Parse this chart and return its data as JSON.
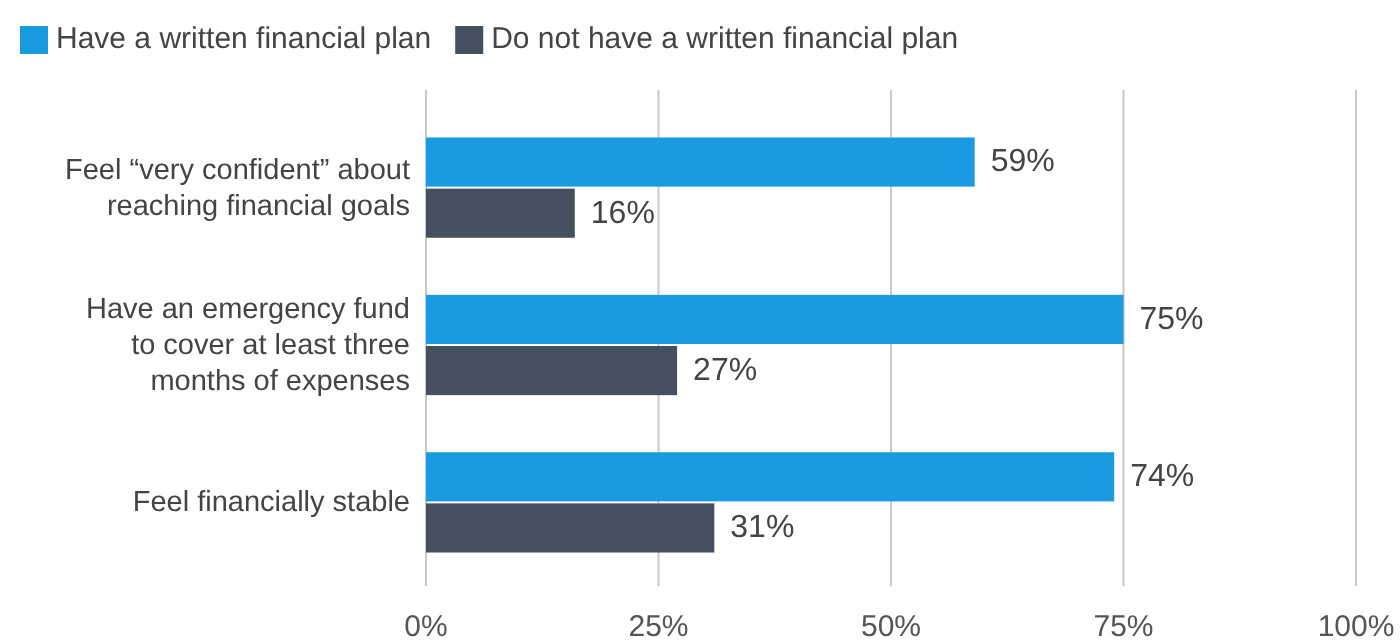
{
  "chart_data": {
    "type": "bar",
    "orientation": "horizontal",
    "categories": [
      "Feel “very confident” about reaching financial goals",
      "Have an emergency fund to cover at least three months of expenses",
      "Feel financially stable"
    ],
    "series": [
      {
        "name": "Have a written financial plan",
        "color": "#1a9ae0",
        "values": [
          59,
          75,
          74
        ],
        "value_labels": [
          "59%",
          "75%",
          "74%"
        ]
      },
      {
        "name": "Do not have a written financial plan",
        "color": "#44505f",
        "values": [
          16,
          27,
          31
        ],
        "value_labels": [
          "16%",
          "27%",
          "31%"
        ]
      }
    ],
    "xlim": [
      0,
      100
    ],
    "xticks": [
      {
        "value": 0,
        "label": "0%"
      },
      {
        "value": 25,
        "label": "25%"
      },
      {
        "value": 50,
        "label": "50%"
      },
      {
        "value": 75,
        "label": "75%"
      },
      {
        "value": 100,
        "label": "100%"
      }
    ],
    "grid": "x",
    "legend": "top left"
  }
}
